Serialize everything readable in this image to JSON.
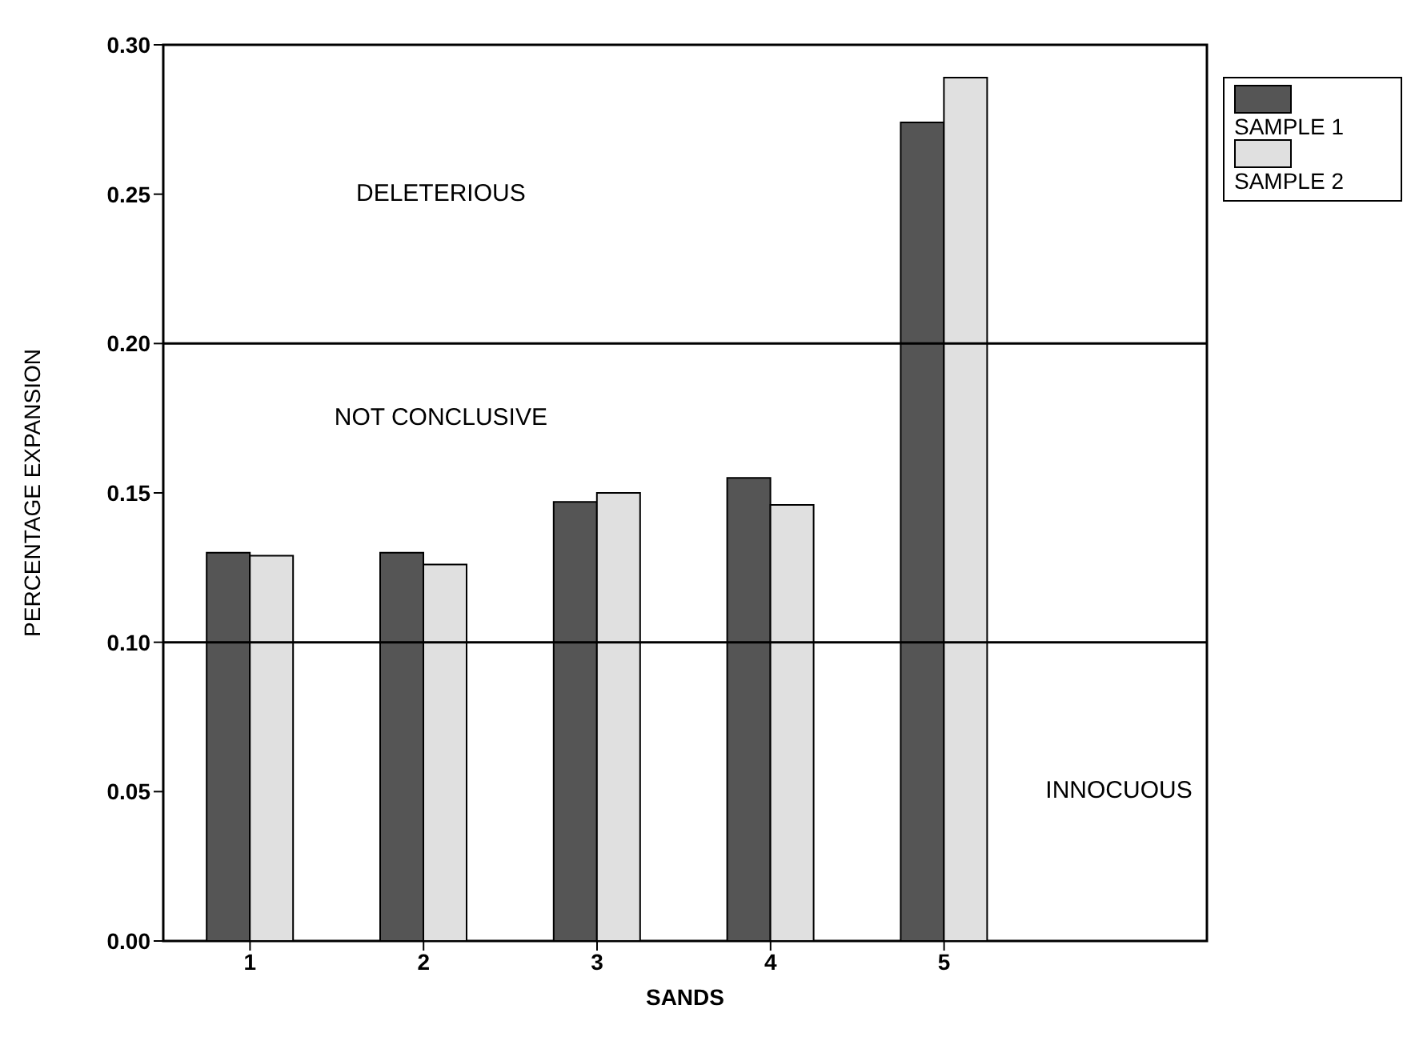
{
  "chart_data": {
    "type": "bar",
    "xlabel": "SANDS",
    "ylabel": "PERCENTAGE EXPANSION",
    "categories": [
      "1",
      "2",
      "3",
      "4",
      "5"
    ],
    "series": [
      {
        "name": "SAMPLE 1",
        "color": "#555555",
        "values": [
          0.13,
          0.13,
          0.147,
          0.155,
          0.274
        ]
      },
      {
        "name": "SAMPLE 2",
        "color": "#e0e0e0",
        "values": [
          0.129,
          0.126,
          0.15,
          0.146,
          0.289
        ]
      }
    ],
    "ylim": [
      0,
      0.3
    ],
    "yticks": [
      {
        "value": 0,
        "label": "0.00"
      },
      {
        "value": 0.05,
        "label": "0.05"
      },
      {
        "value": 0.1,
        "label": "0.10"
      },
      {
        "value": 0.15,
        "label": "0.15"
      },
      {
        "value": 0.2,
        "label": "0.20"
      },
      {
        "value": 0.25,
        "label": "0.25"
      },
      {
        "value": 0.3,
        "label": "0.30"
      }
    ],
    "ref_lines": [
      {
        "axis": "y",
        "value": 0.1,
        "color": "#000000"
      },
      {
        "axis": "y",
        "value": 0.2,
        "color": "#000000"
      }
    ],
    "annotations": [
      "DELETERIOUS",
      "NOT CONCLUSIVE",
      "INNOCUOUS"
    ],
    "grid": false,
    "legend": "top right"
  }
}
